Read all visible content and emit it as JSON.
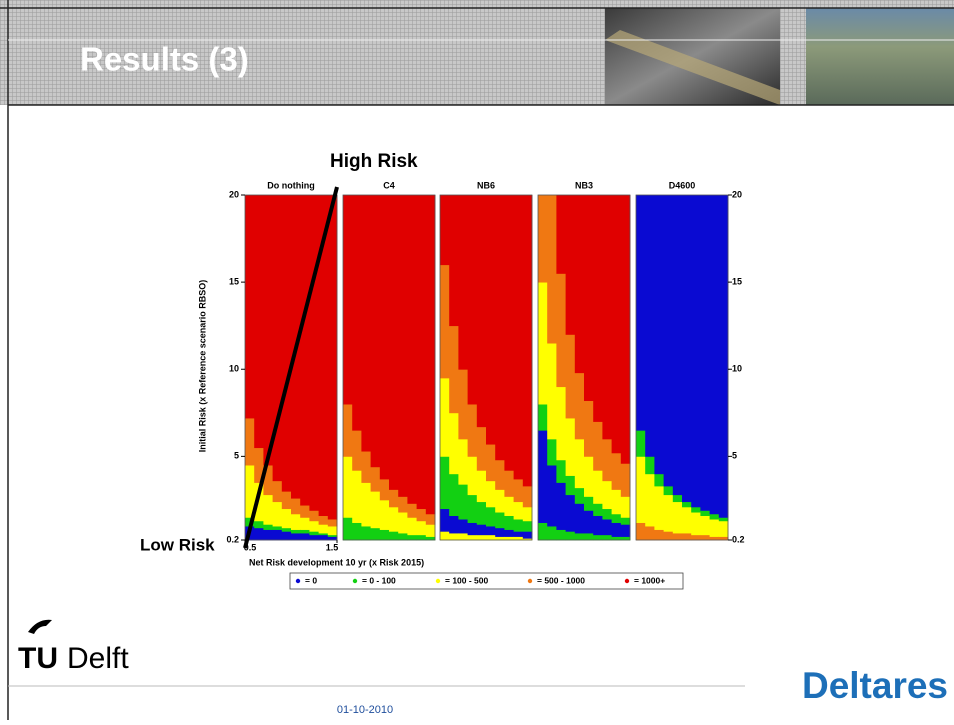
{
  "header": {
    "title": "Results (3)"
  },
  "chart_data": {
    "type": "heatmap",
    "y_label": "Initial Risk (x Reference scenario RBSO)",
    "x_label": "Net Risk development 10 yr (x Risk 2015)",
    "xlim": [
      0.5,
      1.5
    ],
    "ylim": [
      0.2,
      20
    ],
    "xticks": [
      0.5,
      1.5
    ],
    "yticks": [
      0.2,
      5,
      10,
      15,
      20
    ],
    "annotations": [
      "High Risk",
      "Low Risk"
    ],
    "legend": [
      {
        "label": "= 0",
        "color": "#0a0ad2"
      },
      {
        "label": "= 0 - 100",
        "color": "#12d012"
      },
      {
        "label": "= 100 - 500",
        "color": "#ffff00"
      },
      {
        "label": "= 500 - 1000",
        "color": "#f07812"
      },
      {
        "label": "= 1000+",
        "color": "#e00000"
      }
    ],
    "panels": [
      {
        "title": "Do nothing",
        "bands": [
          {
            "class": 0,
            "tops": [
              1.0,
              0.9,
              0.8,
              0.8,
              0.7,
              0.6,
              0.6,
              0.5,
              0.5,
              0.4
            ]
          },
          {
            "class": 1,
            "tops": [
              1.5,
              1.3,
              1.1,
              1.0,
              0.9,
              0.8,
              0.8,
              0.7,
              0.6,
              0.5
            ]
          },
          {
            "class": 2,
            "tops": [
              4.5,
              3.5,
              2.8,
              2.4,
              2.0,
              1.7,
              1.5,
              1.3,
              1.1,
              1.0
            ]
          },
          {
            "class": 3,
            "tops": [
              7.2,
              5.5,
              4.5,
              3.6,
              3.0,
              2.6,
              2.2,
              1.9,
              1.6,
              1.4
            ]
          },
          {
            "class": 4,
            "tops": [
              20,
              20,
              20,
              20,
              20,
              20,
              20,
              20,
              20,
              20
            ]
          }
        ]
      },
      {
        "title": "C4",
        "bands": [
          {
            "class": 1,
            "tops": [
              1.5,
              1.2,
              1.0,
              0.9,
              0.8,
              0.7,
              0.6,
              0.5,
              0.5,
              0.4
            ]
          },
          {
            "class": 2,
            "tops": [
              5.0,
              4.2,
              3.5,
              3.0,
              2.5,
              2.1,
              1.8,
              1.5,
              1.3,
              1.1
            ]
          },
          {
            "class": 3,
            "tops": [
              8.0,
              6.5,
              5.3,
              4.4,
              3.7,
              3.1,
              2.7,
              2.3,
              2.0,
              1.7
            ]
          },
          {
            "class": 4,
            "tops": [
              20,
              20,
              20,
              20,
              20,
              20,
              20,
              20,
              20,
              20
            ]
          }
        ]
      },
      {
        "title": "NB6",
        "bands": [
          {
            "class": 2,
            "tops": [
              0.7,
              0.6,
              0.6,
              0.5,
              0.5,
              0.5,
              0.4,
              0.4,
              0.4,
              0.3
            ]
          },
          {
            "class": 0,
            "tops": [
              2.0,
              1.6,
              1.4,
              1.2,
              1.1,
              1.0,
              0.9,
              0.8,
              0.7,
              0.7
            ]
          },
          {
            "class": 1,
            "tops": [
              5.0,
              4.0,
              3.4,
              2.8,
              2.4,
              2.1,
              1.8,
              1.6,
              1.4,
              1.3
            ]
          },
          {
            "class": 2,
            "tops": [
              9.5,
              7.5,
              6.0,
              5.0,
              4.2,
              3.6,
              3.1,
              2.7,
              2.4,
              2.1
            ]
          },
          {
            "class": 3,
            "tops": [
              16.0,
              12.5,
              10.0,
              8.0,
              6.7,
              5.7,
              4.8,
              4.2,
              3.7,
              3.3
            ]
          },
          {
            "class": 4,
            "tops": [
              20,
              20,
              20,
              20,
              20,
              20,
              20,
              20,
              20,
              20
            ]
          }
        ]
      },
      {
        "title": "NB3",
        "bands": [
          {
            "class": 1,
            "tops": [
              1.2,
              1.0,
              0.8,
              0.7,
              0.6,
              0.6,
              0.5,
              0.5,
              0.4,
              0.4
            ]
          },
          {
            "class": 0,
            "tops": [
              6.5,
              4.5,
              3.5,
              2.8,
              2.3,
              1.9,
              1.6,
              1.4,
              1.2,
              1.1
            ]
          },
          {
            "class": 1,
            "tops": [
              8.0,
              6.0,
              4.8,
              3.9,
              3.2,
              2.7,
              2.3,
              2.0,
              1.7,
              1.5
            ]
          },
          {
            "class": 2,
            "tops": [
              15.0,
              11.5,
              9.0,
              7.2,
              6.0,
              5.0,
              4.2,
              3.6,
              3.1,
              2.7
            ]
          },
          {
            "class": 3,
            "tops": [
              20,
              20,
              15.5,
              12.0,
              9.8,
              8.2,
              7.0,
              6.0,
              5.2,
              4.6
            ]
          },
          {
            "class": 4,
            "tops": [
              20,
              20,
              20,
              20,
              20,
              20,
              20,
              20,
              20,
              20
            ]
          }
        ]
      },
      {
        "title": "D4600",
        "bands": [
          {
            "class": 3,
            "tops": [
              1.2,
              1.0,
              0.8,
              0.7,
              0.6,
              0.6,
              0.5,
              0.5,
              0.4,
              0.4
            ]
          },
          {
            "class": 2,
            "tops": [
              5.0,
              4.0,
              3.3,
              2.8,
              2.4,
              2.1,
              1.8,
              1.6,
              1.4,
              1.3
            ]
          },
          {
            "class": 1,
            "tops": [
              6.5,
              5.0,
              4.0,
              3.3,
              2.8,
              2.4,
              2.1,
              1.9,
              1.7,
              1.5
            ]
          },
          {
            "class": 0,
            "tops": [
              20,
              20,
              20,
              20,
              20,
              20,
              20,
              20,
              20,
              20
            ]
          }
        ]
      }
    ]
  },
  "footer": {
    "date": "01-10-2010",
    "left_logo_mark": "TU",
    "left_logo_text": "Delft",
    "right_logo": "Deltares"
  }
}
